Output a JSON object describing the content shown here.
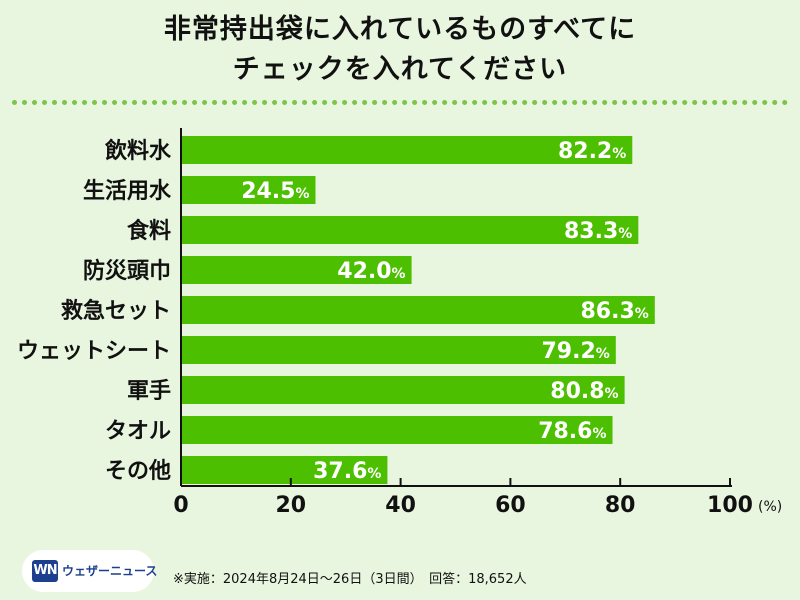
{
  "title_line1": "非常持出袋に入れているものすべてに",
  "title_line2": "チェックを入れてください",
  "logo": {
    "mark": "WN",
    "text": "ウェザーニュース"
  },
  "note": "※実施：2024年8月24日〜26日（3日間）　回答：18,652人",
  "colors": {
    "bar": "#4cbf00",
    "background": "#e9f6df",
    "dots": "#7cc44a"
  },
  "chart_data": {
    "type": "bar",
    "orientation": "horizontal",
    "categories": [
      "飲料水",
      "生活用水",
      "食料",
      "防災頭巾",
      "救急セット",
      "ウェットシート",
      "軍手",
      "タオル",
      "その他"
    ],
    "values": [
      82.2,
      24.5,
      83.3,
      42.0,
      86.3,
      79.2,
      80.8,
      78.6,
      37.6
    ],
    "value_labels": [
      "82.2",
      "24.5",
      "83.3",
      "42.0",
      "86.3",
      "79.2",
      "80.8",
      "78.6",
      "37.6"
    ],
    "value_unit": "%",
    "xlim": [
      0,
      100
    ],
    "xticks": [
      0,
      20,
      40,
      60,
      80,
      100
    ],
    "xunit": "(%)",
    "grid": false
  }
}
